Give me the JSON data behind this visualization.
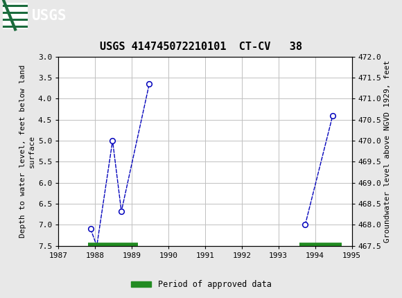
{
  "title": "USGS 414745072210101  CT-CV   38",
  "header_color": "#1a6b3c",
  "ylabel_left": "Depth to water level, feet below land\nsurface",
  "ylabel_right": "Groundwater level above NGVD 1929, feet",
  "ylim_left": [
    7.5,
    3.0
  ],
  "ylim_right": [
    467.5,
    472.0
  ],
  "xlim": [
    1987,
    1995
  ],
  "yticks_left": [
    3.0,
    3.5,
    4.0,
    4.5,
    5.0,
    5.5,
    6.0,
    6.5,
    7.0,
    7.5
  ],
  "yticks_right": [
    467.5,
    468.0,
    468.5,
    469.0,
    469.5,
    470.0,
    470.5,
    471.0,
    471.5,
    472.0
  ],
  "xticks": [
    1987,
    1988,
    1989,
    1990,
    1991,
    1992,
    1993,
    1994,
    1995
  ],
  "segments": [
    {
      "x": [
        1987.88,
        1988.05,
        1988.48,
        1988.72,
        1989.48
      ],
      "y": [
        7.1,
        7.5,
        5.0,
        6.68,
        3.65
      ]
    },
    {
      "x": [
        1993.73,
        1994.48
      ],
      "y": [
        7.0,
        4.4
      ]
    }
  ],
  "line_color": "#0000bb",
  "marker_color": "#0000bb",
  "green_bars": [
    {
      "x_start": 1987.82,
      "x_end": 1989.17
    },
    {
      "x_start": 1993.57,
      "x_end": 1994.72
    }
  ],
  "green_color": "#228b22",
  "green_bar_y": 7.5,
  "legend_label": "Period of approved data",
  "bg_color": "#e8e8e8",
  "plot_bg_color": "#ffffff",
  "grid_color": "#c0c0c0",
  "font_family": "monospace",
  "title_fontsize": 11,
  "tick_fontsize": 8,
  "ylabel_fontsize": 8
}
